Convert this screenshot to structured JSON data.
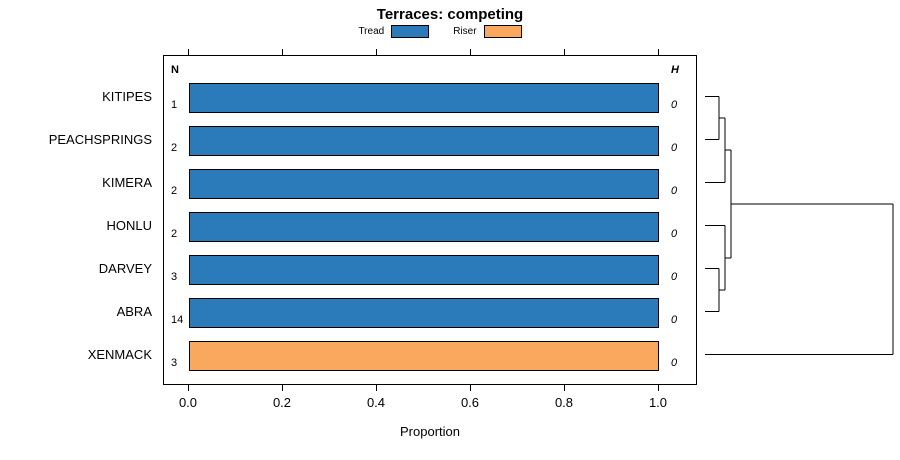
{
  "title": "Terraces: competing",
  "legend": {
    "items": [
      {
        "label": "Tread",
        "color": "#2B7BBA"
      },
      {
        "label": "Riser",
        "color": "#FAA85E"
      }
    ]
  },
  "columns": {
    "n_header": "N",
    "h_header": "H"
  },
  "axes": {
    "xlabel": "Proportion",
    "xticks": [
      "0.0",
      "0.2",
      "0.4",
      "0.6",
      "0.8",
      "1.0"
    ]
  },
  "chart_data": {
    "type": "bar",
    "orientation": "horizontal",
    "title": "Terraces: competing",
    "xlabel": "Proportion",
    "xlim": [
      0,
      1
    ],
    "xticks": [
      0,
      0.2,
      0.4,
      0.6,
      0.8,
      1.0
    ],
    "legend_entries": [
      "Tread",
      "Riser"
    ],
    "legend_position": "top",
    "rows": [
      {
        "label": "KITIPES",
        "series": "Tread",
        "value": 1.0,
        "n": "1",
        "h": "0"
      },
      {
        "label": "PEACHSPRINGS",
        "series": "Tread",
        "value": 1.0,
        "n": "2",
        "h": "0"
      },
      {
        "label": "KIMERA",
        "series": "Tread",
        "value": 1.0,
        "n": "2",
        "h": "0"
      },
      {
        "label": "HONLU",
        "series": "Tread",
        "value": 1.0,
        "n": "2",
        "h": "0"
      },
      {
        "label": "DARVEY",
        "series": "Tread",
        "value": 1.0,
        "n": "3",
        "h": "0"
      },
      {
        "label": "ABRA",
        "series": "Tread",
        "value": 1.0,
        "n": "14",
        "h": "0"
      },
      {
        "label": "XENMACK",
        "series": "Riser",
        "value": 1.0,
        "n": "3",
        "h": "0"
      }
    ],
    "dendrogram": {
      "position": "right",
      "leaf_order": [
        "KITIPES",
        "PEACHSPRINGS",
        "KIMERA",
        "HONLU",
        "DARVEY",
        "ABRA",
        "XENMACK"
      ],
      "merges": [
        [
          "KITIPES",
          "PEACHSPRINGS"
        ],
        [
          "KITIPES+PEACHSPRINGS",
          "KIMERA"
        ],
        [
          "DARVEY",
          "ABRA"
        ],
        [
          "HONLU",
          "DARVEY+ABRA"
        ],
        [
          "KITIPES+PEACHSPRINGS+KIMERA",
          "HONLU+DARVEY+ABRA"
        ],
        [
          "ALL-TREAD-ROWS",
          "XENMACK"
        ]
      ]
    }
  }
}
